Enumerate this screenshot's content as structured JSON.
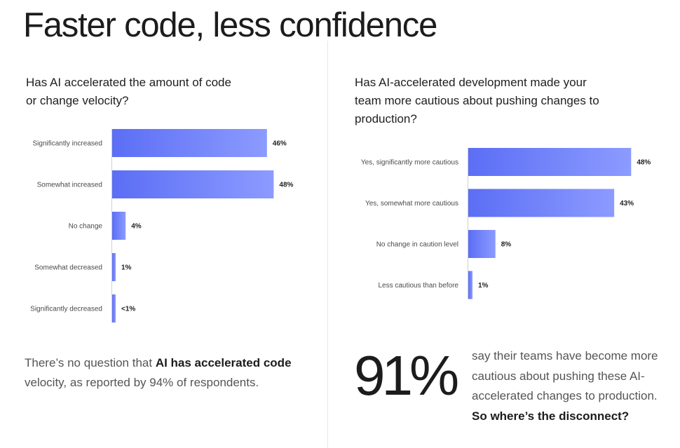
{
  "title": "Faster code, less confidence",
  "colors": {
    "bar_start": "#5b6ef5",
    "bar_end": "#8c9bff",
    "text_dark": "#1c1c1c",
    "text_muted": "#555555"
  },
  "left": {
    "question": "Has AI accelerated the amount of code or change velocity?",
    "body_prefix": "There’s no question that ",
    "body_bold": "AI has accelerated code",
    "body_suffix": " velocity, as reported by 94% of respondents."
  },
  "right": {
    "question": "Has AI-accelerated development made your team more cautious about pushing changes to production?",
    "stat_value": "91%",
    "stat_text": "say their teams have become more cautious about pushing these AI-accelerated changes to production.",
    "stat_highlight": "So where’s the disconnect?"
  },
  "chart_data": [
    {
      "type": "bar",
      "orientation": "horizontal",
      "title": "Has AI accelerated the amount of code or change velocity?",
      "categories": [
        "Significantly increased",
        "Somewhat increased",
        "No change",
        "Somewhat decreased",
        "Significantly decreased"
      ],
      "values": [
        46,
        48,
        4,
        1,
        0.5
      ],
      "value_labels": [
        "46%",
        "48%",
        "4%",
        "1%",
        "<1%"
      ],
      "xlim": [
        0,
        50
      ],
      "grid": false,
      "legend": "none"
    },
    {
      "type": "bar",
      "orientation": "horizontal",
      "title": "Has AI-accelerated development made your team more cautious about pushing changes to production?",
      "categories": [
        "Yes, significantly more cautious",
        "Yes, somewhat more cautious",
        "No change in caution level",
        "Less cautious than before"
      ],
      "values": [
        48,
        43,
        8,
        1
      ],
      "value_labels": [
        "48%",
        "43%",
        "8%",
        "1%"
      ],
      "xlim": [
        0,
        50
      ],
      "grid": false,
      "legend": "none"
    }
  ]
}
